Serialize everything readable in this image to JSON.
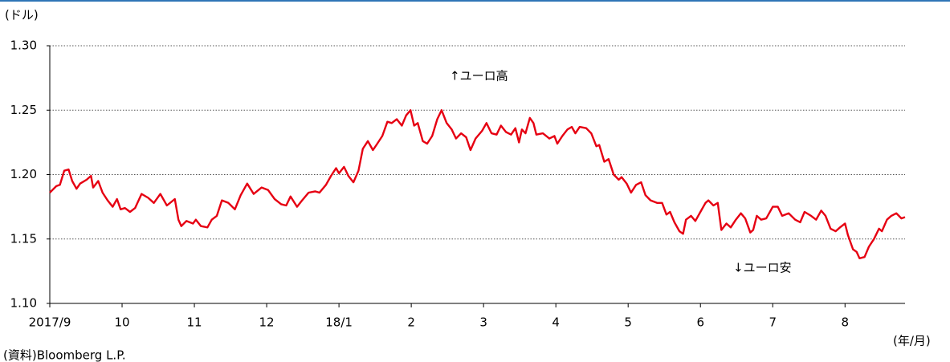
{
  "chart_data": {
    "type": "line",
    "y_label": "(ドル)",
    "x_label": "(年/月)",
    "source": "(資料)Bloomberg L.P.",
    "annotations": [
      "↑ユーロ高",
      "↓ユーロ安"
    ],
    "ylim": [
      1.1,
      1.3
    ],
    "yticks": [
      {
        "value": 1.1,
        "label": "1.10"
      },
      1.15,
      {
        "value": 1.2,
        "label": "1.20"
      },
      1.25,
      {
        "value": 1.3,
        "label": "1.30"
      }
    ],
    "xlim": [
      0,
      11.83
    ],
    "xticks": [
      {
        "value": 0,
        "label": "2017/9"
      },
      {
        "value": 1,
        "label": "10"
      },
      {
        "value": 2,
        "label": "11"
      },
      {
        "value": 3,
        "label": "12"
      },
      {
        "value": 4,
        "label": "18/1"
      },
      {
        "value": 5,
        "label": "2"
      },
      {
        "value": 6,
        "label": "3"
      },
      {
        "value": 7,
        "label": "4"
      },
      {
        "value": 8,
        "label": "5"
      },
      {
        "value": 9,
        "label": "6"
      },
      {
        "value": 10,
        "label": "7"
      },
      {
        "value": 11,
        "label": "8"
      }
    ],
    "grid": true,
    "x": [
      0,
      0.09,
      0.14,
      0.2,
      0.26,
      0.31,
      0.37,
      0.42,
      0.51,
      0.57,
      0.6,
      0.67,
      0.73,
      0.8,
      0.87,
      0.93,
      0.98,
      1.04,
      1.11,
      1.18,
      1.27,
      1.36,
      1.44,
      1.53,
      1.62,
      1.73,
      1.78,
      1.82,
      1.89,
      1.98,
      2.02,
      2.09,
      2.18,
      2.24,
      2.31,
      2.38,
      2.47,
      2.56,
      2.64,
      2.73,
      2.82,
      2.93,
      3.02,
      3.11,
      3.2,
      3.27,
      3.33,
      3.42,
      3.49,
      3.58,
      3.67,
      3.73,
      3.82,
      3.89,
      3.96,
      4,
      4.07,
      4.13,
      4.2,
      4.27,
      4.33,
      4.4,
      4.47,
      4.53,
      4.6,
      4.67,
      4.73,
      4.8,
      4.87,
      4.93,
      4.99,
      5.04,
      5.09,
      5.16,
      5.22,
      5.29,
      5.36,
      5.42,
      5.49,
      5.56,
      5.62,
      5.69,
      5.76,
      5.82,
      5.89,
      5.98,
      6.04,
      6.11,
      6.18,
      6.24,
      6.31,
      6.38,
      6.44,
      6.49,
      6.53,
      6.58,
      6.64,
      6.69,
      6.73,
      6.82,
      6.91,
      6.98,
      7.02,
      7.09,
      7.16,
      7.22,
      7.27,
      7.33,
      7.42,
      7.49,
      7.56,
      7.6,
      7.67,
      7.73,
      7.8,
      7.87,
      7.91,
      7.98,
      8.04,
      8.11,
      8.18,
      8.24,
      8.31,
      8.4,
      8.47,
      8.53,
      8.58,
      8.64,
      8.71,
      8.76,
      8.8,
      8.87,
      8.93,
      9,
      9.07,
      9.11,
      9.18,
      9.24,
      9.29,
      9.36,
      9.42,
      9.49,
      9.56,
      9.62,
      9.69,
      9.73,
      9.78,
      9.84,
      9.91,
      10,
      10.07,
      10.13,
      10.22,
      10.31,
      10.38,
      10.44,
      10.53,
      10.6,
      10.67,
      10.73,
      10.8,
      10.87,
      10.93,
      11,
      11.04,
      11.11,
      11.16,
      11.2,
      11.27,
      11.33,
      11.4,
      11.47,
      11.51,
      11.58,
      11.64,
      11.71,
      11.78,
      11.83
    ],
    "series": [
      {
        "color": "#e60012",
        "values": [
          1.186,
          1.191,
          1.192,
          1.203,
          1.204,
          1.195,
          1.189,
          1.193,
          1.196,
          1.199,
          1.19,
          1.195,
          1.186,
          1.18,
          1.175,
          1.181,
          1.173,
          1.174,
          1.171,
          1.174,
          1.185,
          1.182,
          1.178,
          1.185,
          1.176,
          1.181,
          1.165,
          1.16,
          1.164,
          1.162,
          1.165,
          1.16,
          1.159,
          1.165,
          1.168,
          1.18,
          1.178,
          1.173,
          1.184,
          1.193,
          1.185,
          1.19,
          1.188,
          1.181,
          1.177,
          1.176,
          1.183,
          1.175,
          1.18,
          1.186,
          1.187,
          1.186,
          1.192,
          1.199,
          1.205,
          1.201,
          1.206,
          1.199,
          1.194,
          1.203,
          1.22,
          1.226,
          1.219,
          1.224,
          1.23,
          1.241,
          1.24,
          1.243,
          1.238,
          1.246,
          1.25,
          1.238,
          1.24,
          1.226,
          1.224,
          1.23,
          1.243,
          1.25,
          1.24,
          1.235,
          1.228,
          1.232,
          1.229,
          1.219,
          1.228,
          1.234,
          1.24,
          1.232,
          1.231,
          1.238,
          1.233,
          1.231,
          1.236,
          1.225,
          1.235,
          1.232,
          1.244,
          1.24,
          1.231,
          1.232,
          1.228,
          1.23,
          1.224,
          1.23,
          1.235,
          1.237,
          1.232,
          1.237,
          1.236,
          1.232,
          1.222,
          1.223,
          1.21,
          1.212,
          1.2,
          1.196,
          1.198,
          1.193,
          1.186,
          1.192,
          1.194,
          1.184,
          1.18,
          1.178,
          1.178,
          1.169,
          1.171,
          1.163,
          1.156,
          1.154,
          1.165,
          1.168,
          1.164,
          1.171,
          1.178,
          1.18,
          1.176,
          1.178,
          1.157,
          1.162,
          1.159,
          1.165,
          1.17,
          1.166,
          1.155,
          1.157,
          1.168,
          1.165,
          1.166,
          1.175,
          1.175,
          1.168,
          1.17,
          1.165,
          1.163,
          1.171,
          1.168,
          1.165,
          1.172,
          1.168,
          1.158,
          1.156,
          1.159,
          1.162,
          1.153,
          1.142,
          1.14,
          1.135,
          1.136,
          1.144,
          1.15,
          1.158,
          1.156,
          1.165,
          1.168,
          1.17,
          1.166,
          1.167
        ]
      }
    ]
  }
}
